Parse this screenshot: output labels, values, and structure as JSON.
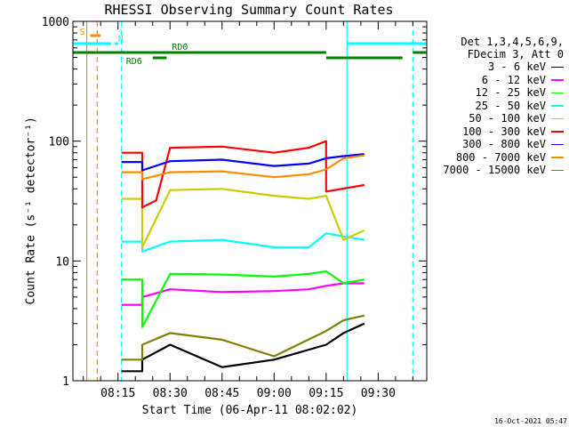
{
  "chart_data": {
    "type": "line",
    "title": "RHESSI Observing Summary Count Rates",
    "xlabel": "Start Time (06-Apr-11 08:02:02)",
    "ylabel": "Count Rate (s⁻¹ detector⁻¹)",
    "y_scale": "log",
    "ylim": [
      1,
      1000
    ],
    "xlim": [
      "08:02",
      "09:44"
    ],
    "x_ticks": [
      "08:15",
      "08:30",
      "08:45",
      "09:00",
      "09:15",
      "09:30"
    ],
    "y_ticks": [
      "1",
      "10",
      "100",
      "1000"
    ],
    "legend_header": [
      "Det 1,3,4,5,6,9,",
      "FDecim 3, Att 0"
    ],
    "legend_position": "right",
    "series": [
      {
        "name": "3 - 6 keV",
        "color": "#000000",
        "x": [
          "08:16",
          "08:22",
          "08:22",
          "08:30",
          "08:45",
          "09:00",
          "09:15",
          "09:20",
          "09:26"
        ],
        "y": [
          1.2,
          1.2,
          1.5,
          2.0,
          1.3,
          1.5,
          2.0,
          2.5,
          3.0
        ]
      },
      {
        "name": "6 - 12 keV",
        "color": "#ff00ff",
        "x": [
          "08:16",
          "08:22",
          "08:22",
          "08:30",
          "08:45",
          "09:00",
          "09:10",
          "09:15",
          "09:20",
          "09:26"
        ],
        "y": [
          4.3,
          4.3,
          5.0,
          5.8,
          5.5,
          5.6,
          5.8,
          6.2,
          6.5,
          6.5
        ]
      },
      {
        "name": "12 - 25 keV",
        "color": "#00ff00",
        "x": [
          "08:16",
          "08:22",
          "08:22",
          "08:30",
          "08:45",
          "09:00",
          "09:10",
          "09:15",
          "09:20",
          "09:26"
        ],
        "y": [
          7.0,
          7.0,
          2.8,
          7.8,
          7.7,
          7.4,
          7.8,
          8.2,
          6.5,
          7.0
        ]
      },
      {
        "name": "25 - 50 keV",
        "color": "#00ffff",
        "x": [
          "08:16",
          "08:22",
          "08:22",
          "08:30",
          "08:45",
          "09:00",
          "09:10",
          "09:15",
          "09:20",
          "09:26"
        ],
        "y": [
          14.5,
          14.5,
          12.0,
          14.5,
          15.0,
          13.0,
          13.0,
          17.0,
          16.0,
          15.0
        ]
      },
      {
        "name": "50 - 100 keV",
        "color": "#cccc00",
        "x": [
          "08:16",
          "08:22",
          "08:22",
          "08:30",
          "08:45",
          "09:00",
          "09:10",
          "09:15",
          "09:20",
          "09:26"
        ],
        "y": [
          33.0,
          33.0,
          13.0,
          39.0,
          40.0,
          35.0,
          33.0,
          35.0,
          15.0,
          18.0
        ]
      },
      {
        "name": "100 - 300 keV",
        "color": "#ff0000",
        "x": [
          "08:16",
          "08:22",
          "08:22",
          "08:26",
          "08:30",
          "08:45",
          "09:00",
          "09:10",
          "09:15",
          "09:15",
          "09:26"
        ],
        "y": [
          80.0,
          80.0,
          28.0,
          32.0,
          88.0,
          90.0,
          80.0,
          88.0,
          100.0,
          38.0,
          43.0
        ]
      },
      {
        "name": "300 - 800 keV",
        "color": "#0000ff",
        "x": [
          "08:16",
          "08:22",
          "08:22",
          "08:30",
          "08:45",
          "09:00",
          "09:10",
          "09:15",
          "09:20",
          "09:26"
        ],
        "y": [
          67.0,
          67.0,
          57.0,
          68.0,
          70.0,
          62.0,
          65.0,
          72.0,
          75.0,
          78.0
        ]
      },
      {
        "name": "800 - 7000 keV",
        "color": "#ff8c00",
        "x": [
          "08:16",
          "08:22",
          "08:22",
          "08:30",
          "08:45",
          "09:00",
          "09:10",
          "09:15",
          "09:20",
          "09:26"
        ],
        "y": [
          55.0,
          55.0,
          48.0,
          55.0,
          56.0,
          50.0,
          53.0,
          58.0,
          72.0,
          76.0
        ]
      },
      {
        "name": "7000 - 15000 keV",
        "color": "#808000",
        "x": [
          "08:16",
          "08:22",
          "08:22",
          "08:30",
          "08:45",
          "09:00",
          "09:15",
          "09:20",
          "09:26"
        ],
        "y": [
          1.5,
          1.5,
          2.0,
          2.5,
          2.2,
          1.6,
          2.6,
          3.2,
          3.5
        ]
      }
    ],
    "state_bars": [
      {
        "label": "S",
        "color": "#ff8c00",
        "segments": [
          [
            "08:07",
            "08:10"
          ]
        ]
      },
      {
        "label": "N",
        "color": "#00ffff",
        "segments": [
          [
            "08:02",
            "08:13"
          ],
          [
            "08:14",
            "08:15"
          ],
          [
            "09:21",
            "09:44"
          ]
        ]
      },
      {
        "label": "RD0",
        "color": "#008000",
        "segments": [
          [
            "08:02",
            "09:15"
          ],
          [
            "09:40",
            "09:44"
          ]
        ]
      },
      {
        "label": "RD6",
        "color": "#008000",
        "segments": [
          [
            "08:25",
            "08:29"
          ],
          [
            "09:15",
            "09:37"
          ]
        ]
      }
    ],
    "vertical_markers": [
      {
        "x": "08:06",
        "color": "#ff8c00",
        "style": "solid"
      },
      {
        "x": "08:09",
        "color": "#ff8c00",
        "style": "dashed"
      },
      {
        "x": "08:16",
        "color": "#00ffff",
        "style": "dashed"
      },
      {
        "x": "09:21",
        "color": "#00ffff",
        "style": "solid"
      },
      {
        "x": "09:40",
        "color": "#00ffff",
        "style": "dashed"
      }
    ]
  },
  "footer": {
    "timestamp": "16-Oct-2021 05:47"
  }
}
